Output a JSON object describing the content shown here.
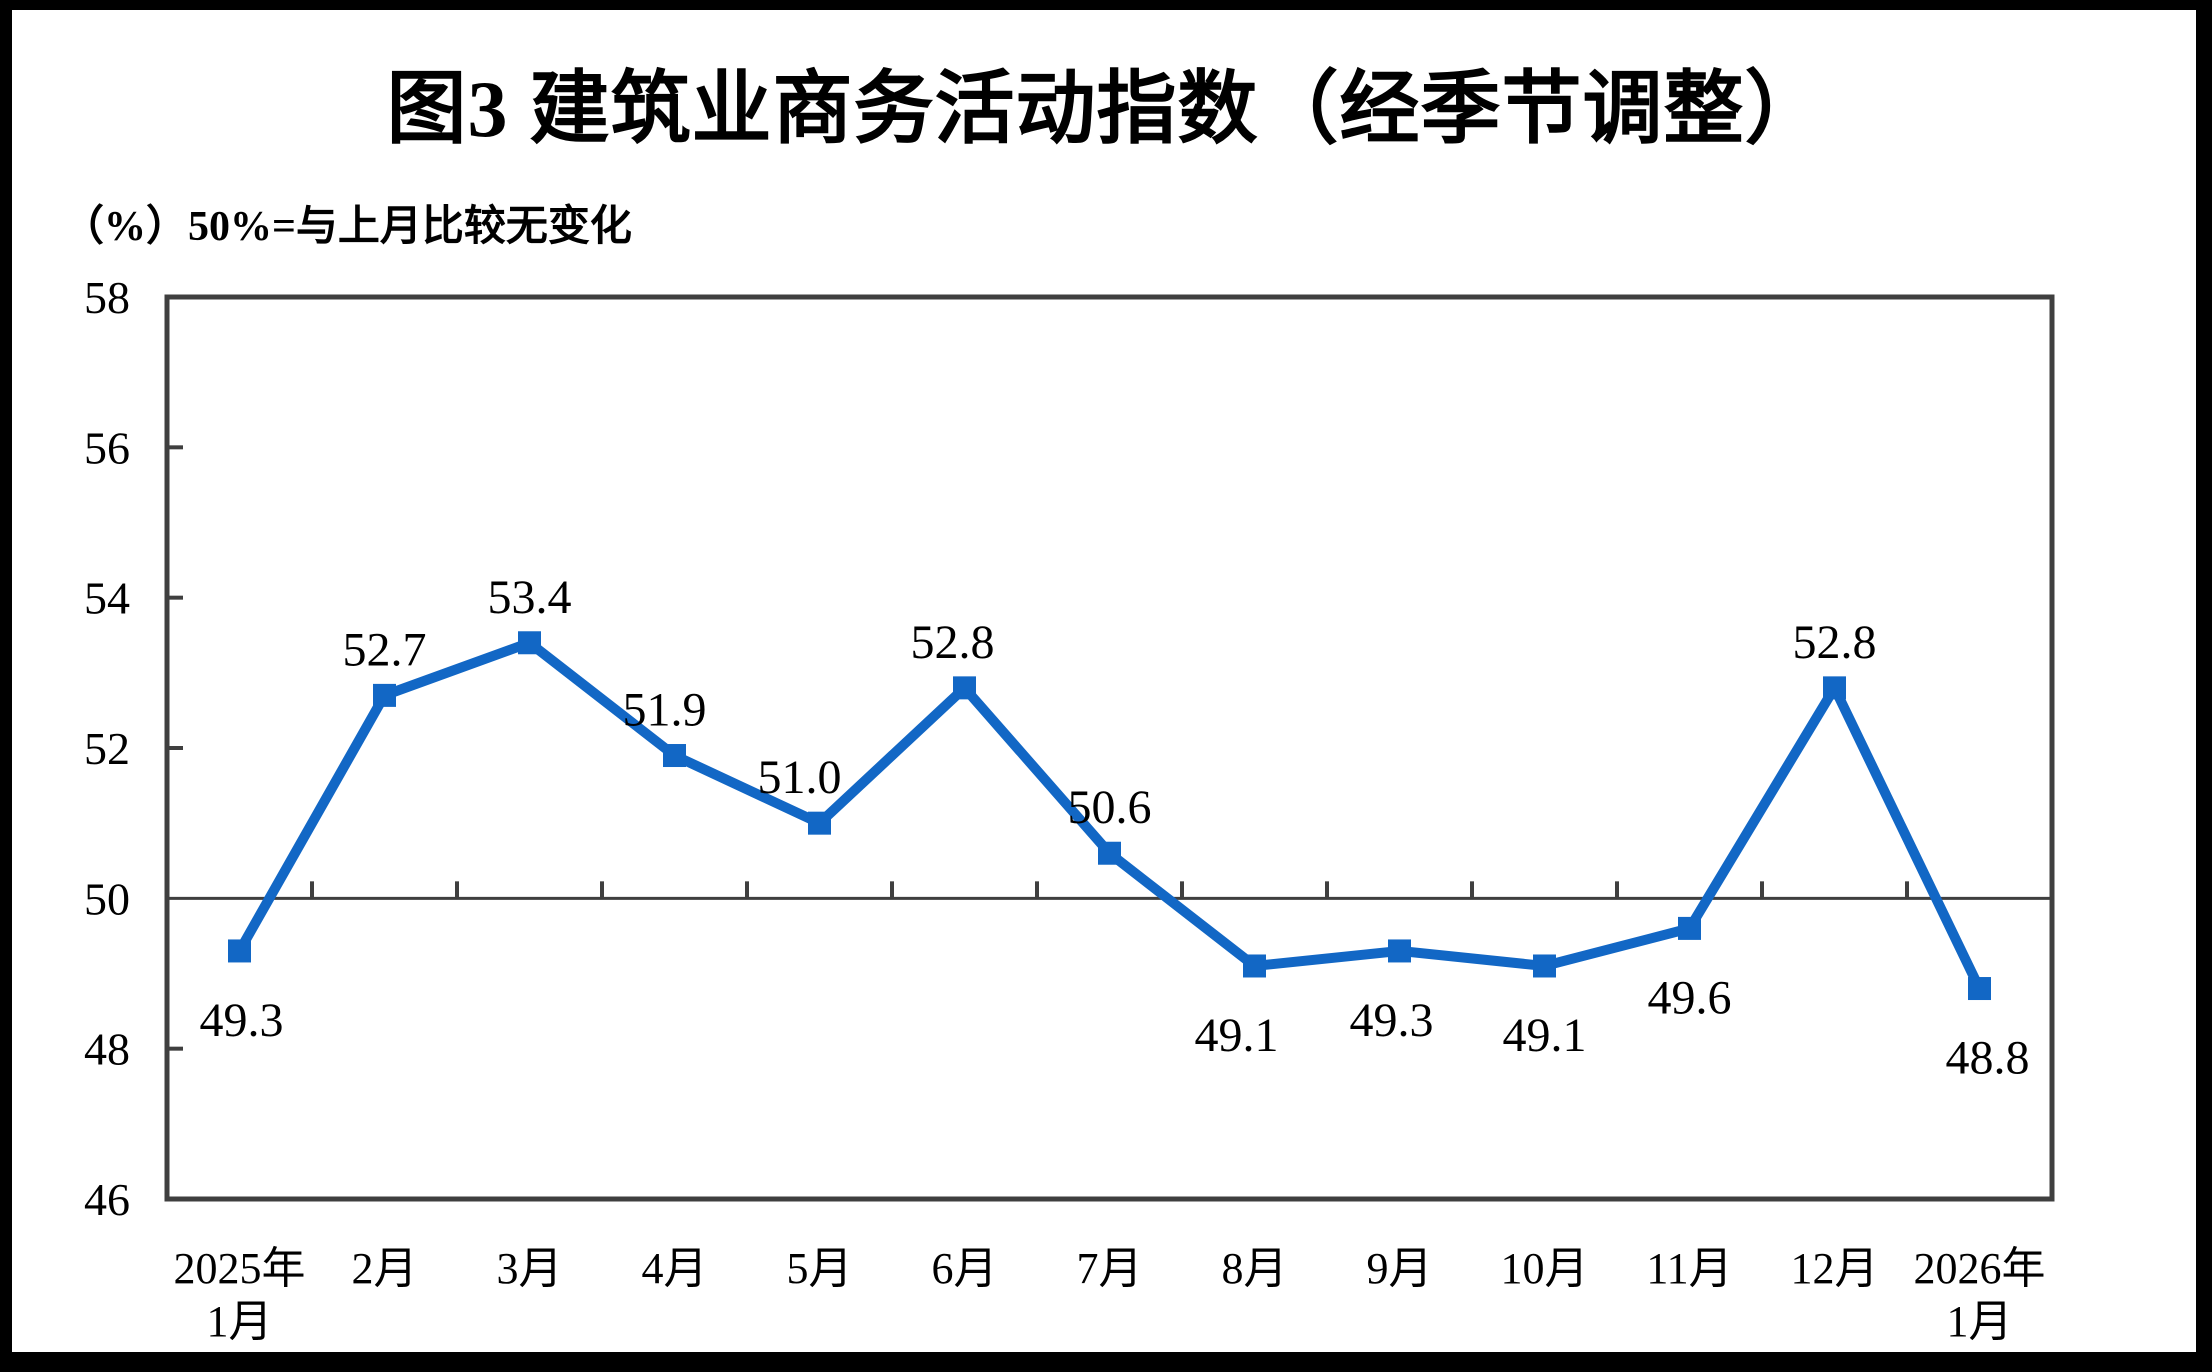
{
  "title": "图3 建筑业商务活动指数（经季节调整）",
  "subtitle": "（%）50%=与上月比较无变化",
  "chart_data": {
    "type": "line",
    "title": "图3 建筑业商务活动指数（经季节调整）",
    "note": "（%）50%=与上月比较无变化",
    "categories": [
      "2025年\n1月",
      "2月",
      "3月",
      "4月",
      "5月",
      "6月",
      "7月",
      "8月",
      "9月",
      "10月",
      "11月",
      "12月",
      "2026年\n1月"
    ],
    "values": [
      49.3,
      52.7,
      53.4,
      51.9,
      51.0,
      52.8,
      50.6,
      49.1,
      49.3,
      49.1,
      49.6,
      52.8,
      48.8
    ],
    "value_labels": [
      "49.3",
      "52.7",
      "53.4",
      "51.9",
      "51.0",
      "52.8",
      "50.6",
      "49.1",
      "49.3",
      "49.1",
      "49.6",
      "52.8",
      "48.8"
    ],
    "ylim": [
      46,
      58
    ],
    "yticks": [
      46,
      48,
      50,
      52,
      54,
      56,
      58
    ],
    "reference_line": 50,
    "grid": false,
    "legend": "none",
    "marker": "square",
    "series_color": "#1267C5",
    "axis_color": "#3f3f3f",
    "label_color": "#000000"
  }
}
